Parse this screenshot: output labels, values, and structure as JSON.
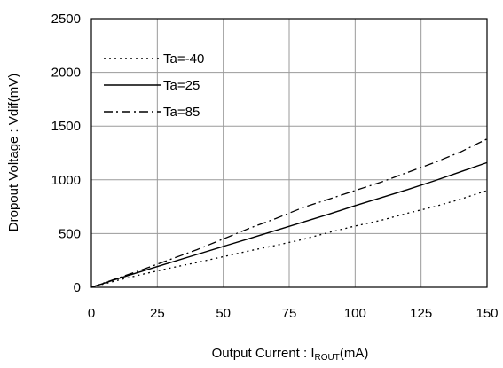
{
  "chart_data": {
    "type": "line",
    "title": "",
    "xlabel_main": "Output Current : I",
    "xlabel_sub": "ROUT",
    "xlabel_unit": "(mA)",
    "ylabel": "Dropout Voltage : Vdif(mV)",
    "xlim": [
      0,
      150
    ],
    "ylim": [
      0,
      2500
    ],
    "xticks": [
      0,
      25,
      50,
      75,
      100,
      125,
      150
    ],
    "yticks": [
      0,
      500,
      1000,
      1500,
      2000,
      2500
    ],
    "grid": true,
    "legend_position": "top-left",
    "series": [
      {
        "name": "Ta=-40",
        "style": "dotted",
        "x": [
          0,
          10,
          20,
          30,
          40,
          50,
          60,
          70,
          80,
          90,
          100,
          110,
          120,
          130,
          140,
          150
        ],
        "y": [
          0,
          65,
          125,
          180,
          230,
          285,
          340,
          390,
          445,
          510,
          570,
          625,
          690,
          750,
          820,
          900
        ]
      },
      {
        "name": "Ta=25",
        "style": "solid",
        "x": [
          0,
          10,
          20,
          30,
          40,
          50,
          60,
          70,
          80,
          90,
          100,
          110,
          120,
          130,
          140,
          150
        ],
        "y": [
          0,
          80,
          155,
          230,
          305,
          380,
          455,
          530,
          605,
          680,
          760,
          835,
          910,
          990,
          1075,
          1160
        ]
      },
      {
        "name": "Ta=85",
        "style": "dash-dot",
        "x": [
          0,
          10,
          20,
          30,
          40,
          50,
          60,
          70,
          80,
          90,
          100,
          110,
          120,
          130,
          140,
          150
        ],
        "y": [
          0,
          85,
          170,
          260,
          350,
          450,
          550,
          640,
          740,
          820,
          900,
          980,
          1070,
          1160,
          1260,
          1380
        ]
      }
    ]
  }
}
